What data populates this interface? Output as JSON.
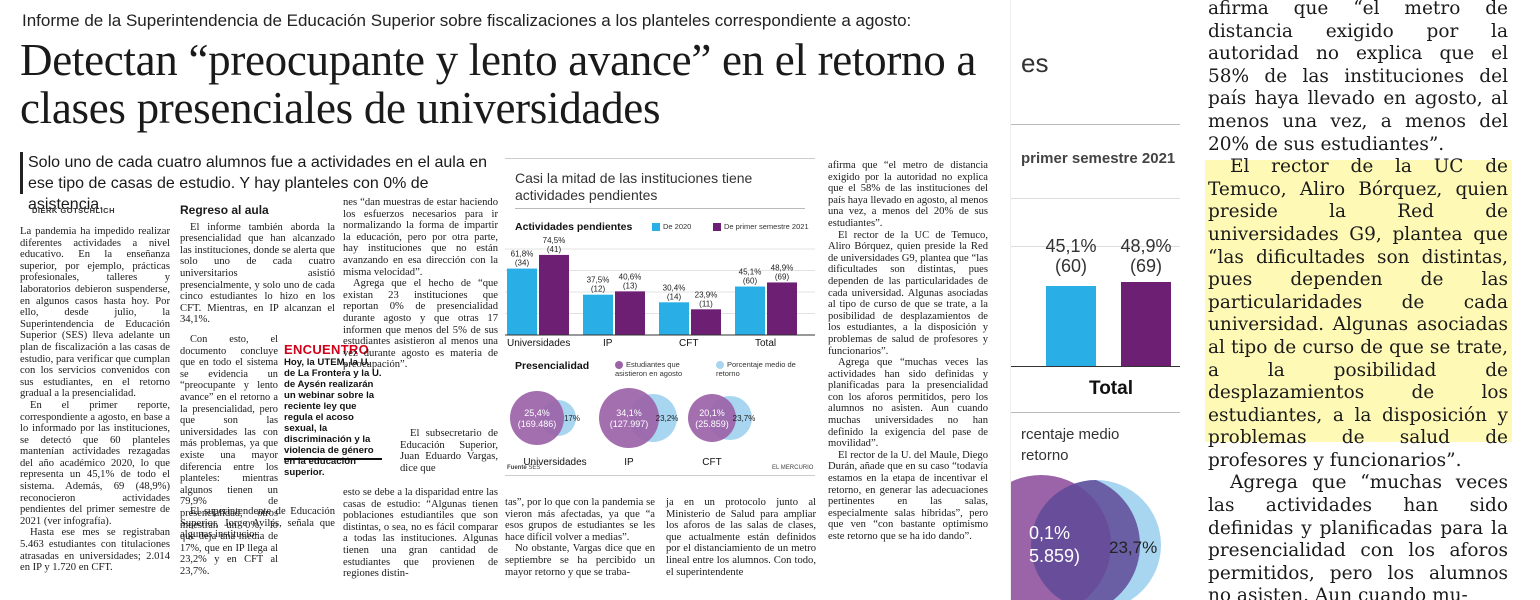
{
  "article": {
    "kicker": "Informe de la Superintendencia de Educación Superior sobre fiscalizaciones a los planteles correspondiente a agosto:",
    "headline": "Detectan “preocupante y lento avance” en el retorno a clases presenciales de universidades",
    "lead": "Solo uno de cada cuatro alumnos fue a actividades en el aula en ese tipo de casas de estudio. Y hay planteles con 0% de asistencia.",
    "byline": "DIERK GOTSCHLICH",
    "col1": [
      "La pandemia ha impedido realizar diferentes actividades a nivel educativo. En la enseñanza superior, por ejemplo, prácticas profesionales, talleres y laboratorios debieron suspenderse, en algunos casos hasta hoy. Por ello, desde julio, la Superintendencia de Educación Superior (SES) lleva adelante un plan de fiscalización a las casas de estudio, para verificar que cumplan con los servicios convenidos con sus estudiantes, en el retorno gradual a la presencialidad.",
      "En el primer reporte, correspondiente a agosto, en base a lo informado por las instituciones, se detectó que 60 planteles mantenían actividades rezagadas del año académico 2020, lo que representa un 45,1% de todo el sistema. Además, 69 (48,9%) reconocieron actividades pendientes del primer semestre de 2021 (ver infografía).",
      "Hasta ese mes se registraban 5.463 estudiantes con titulaciones atrasadas en universidades; 2.014 en IP y 1.720 en CFT."
    ],
    "col2_subhead": "Regreso al aula",
    "col2": [
      "El informe también aborda la presencialidad que han alcanzado las instituciones, donde se alerta que solo uno de cada cuatro universitarios asistió presencialmente, y solo uno de cada cinco estudiantes lo hizo en los CFT. Mientras, en IP alcanzan el 34,1%.",
      "Con esto, el documento concluye que en todo el sistema se evidencia un “preocupante y lento avance” en el retorno a la presencialidad, pero que son las universidades las con más problemas, ya que existe una mayor diferencia entre los planteles: mientras algunos tienen un 79,9% de presencialidad, otros muestran un 0%, lo que deja una media de 17%, que en IP llega al 23,2% y en CFT al 23,7%.",
      "El superintendente de Educación Superior, Jorge Avilés, señala que algunas institucio-"
    ],
    "encuentro": {
      "title": "ENCUENTRO",
      "text": "Hoy, la UTEM, la U. de La Frontera y la U. de Aysén realizarán un webinar sobre la reciente ley que regula el acoso sexual, la discriminación y la violencia de género en la educación superior."
    },
    "col3_top": [
      "nes “dan muestras de estar haciendo los esfuerzos necesarios para ir normalizando la forma de impartir la educación, pero por otra parte, hay instituciones que no están avanzando en esa dirección con la misma velocidad”.",
      "Agrega que el hecho de “que existan 23 instituciones que reportan 0% de presencialidad durante agosto y que otras 17 informen que menos del 5% de sus estudiantes asistieron al menos una vez durante agosto es materia de preocupación”.",
      "El subsecretario de Educación Superior, Juan Eduardo Vargas, dice que"
    ],
    "col3_bottom": [
      "esto se debe a la disparidad entre las casas de estudio: “Algunas tienen poblaciones estudiantiles que son distintas, o sea, no es fácil comparar a todas las instituciones. Algunas tienen una gran cantidad de estudiantes que provienen de regiones distin-"
    ],
    "col4_bottom": [
      "tas”, por lo que con la pandemia se vieron más afectadas, ya que “a esos grupos de estudiantes se les hace difícil volver a medias”.",
      "No obstante, Vargas dice que en septiembre se ha percibido un mayor retorno y que se traba-"
    ],
    "col5_bottom": [
      "ja en un protocolo junto al Ministerio de Salud para ampliar los aforos de las salas de clases, que actualmente están definidos por el distanciamiento de un metro lineal entre los alumnos. Con todo, el superintendente"
    ],
    "col6": [
      "afirma que “el metro de distancia exigido por la autoridad no explica que el 58% de las instituciones del país haya llevado en agosto, al menos una vez, a menos del 20% de sus estudiantes”.",
      "El rector de la UC de Temuco, Aliro Bórquez, quien preside la Red de universidades G9, plantea que “las dificultades son distintas, pues dependen de las particularidades de cada universidad. Algunas asociadas al tipo de curso de que se trate, a la posibilidad de desplazamientos de los estudiantes, a la disposición y problemas de salud de profesores y funcionarios”.",
      "Agrega que “muchas veces las actividades han sido definidas y planificadas para la presencialidad con los aforos permitidos, pero los alumnos no asisten. Aun cuando muchas universidades no han definido la exigencia del pase de movilidad”.",
      "El rector de la U. del Maule, Diego Durán, añade que en su caso “todavía estamos en la etapa de incentivar el retorno, en generar las adecuaciones pertinentes en las salas, especialmente salas híbridas”, pero que ven “con bastante optimismo este retorno que se ha ido dando”."
    ]
  },
  "infographic": {
    "title": "Casi la mitad de las instituciones tiene actividades pendientes",
    "section1": "Actividades pendientes",
    "legend1": [
      "De 2020",
      "De primer semestre 2021"
    ],
    "section2": "Presencialidad",
    "legend2": [
      "Estudiantes que asistieron en agosto",
      "Porcentaje medio de retorno"
    ],
    "source_label": "Fuente",
    "source": "SES",
    "credit": "EL MERCURIO",
    "colors": {
      "cyan": "#29aee6",
      "purple": "#6c1f73",
      "circle_purple": "#9b63a8",
      "circle_blue": "#a8d6f0"
    },
    "chart_data": [
      {
        "type": "bar",
        "categories": [
          "Universidades",
          "IP",
          "CFT",
          "Total"
        ],
        "series": [
          {
            "name": "De 2020",
            "values": [
              61.8,
              37.5,
              30.4,
              45.1
            ],
            "counts": [
              "(34)",
              "(12)",
              "(14)",
              "(60)"
            ],
            "labels": [
              "61,8%",
              "37,5%",
              "30,4%",
              "45,1%"
            ]
          },
          {
            "name": "De primer semestre 2021",
            "values": [
              74.5,
              40.6,
              23.9,
              48.9
            ],
            "counts": [
              "(41)",
              "(13)",
              "(11)",
              "(69)"
            ],
            "labels": [
              "74,5%",
              "40,6%",
              "23,9%",
              "48,9%"
            ]
          }
        ],
        "ylim": [
          0,
          80
        ]
      },
      {
        "type": "venn",
        "categories": [
          "Universidades",
          "IP",
          "CFT"
        ],
        "series": [
          {
            "name": "Estudiantes que asistieron en agosto",
            "labels": [
              "25,4%",
              "34,1%",
              "20,1%"
            ],
            "counts": [
              "(169.486)",
              "(127.997)",
              "(25.859)"
            ]
          },
          {
            "name": "Porcentaje medio de retorno",
            "labels": [
              "17%",
              "23,2%",
              "23,7%"
            ]
          }
        ]
      }
    ]
  },
  "zoom_chart": {
    "header_partial": "es",
    "subtitle_partial": "primer semestre 2021",
    "left_label": "45,1%",
    "left_count": "(60)",
    "right_label": "48,9%",
    "right_count": "(69)",
    "category": "Total",
    "legend_partial_1": "rcentaje medio",
    "legend_partial_2": "retorno",
    "circle_left_1": "0,1%",
    "circle_left_2": "5.859)",
    "circle_right": "23,7%"
  },
  "zoom_text": {
    "p1": "afirma que “el metro de distancia exigido por la autoridad no explica que el 58% de las instituciones del país haya llevado en agosto, al menos una vez, a menos del 20% de sus estudiantes”.",
    "p2": "El rector de la UC de Temuco, Aliro Bórquez, quien preside la Red de universidades G9, plantea que “las dificultades son distintas, pues dependen de las particularidades de cada universidad. Algunas asociadas al tipo de curso de que se trate, a la posibilidad de desplazamientos de los estudiantes, a la disposición y problemas de salud de profesores y funcionarios”.",
    "p3": "Agrega que “muchas veces las actividades han sido definidas y planificadas para la presencialidad con los aforos permitidos, pero los alumnos no asisten. Aun cuando mu-"
  }
}
